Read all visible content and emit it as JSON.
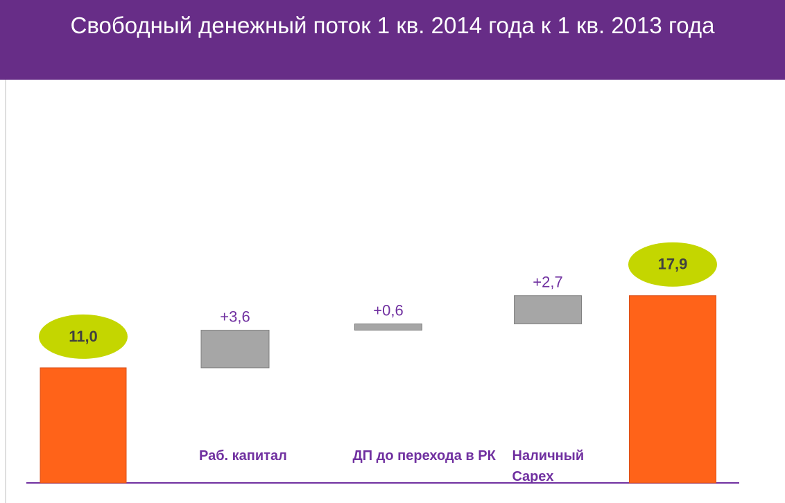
{
  "chart_data": {
    "type": "waterfall",
    "title": "Свободный денежный поток  1 кв. 2014 года к 1 кв. 2013 года",
    "categories": [
      null,
      "Раб. капитал",
      "ДП до перехода в РК",
      "Наличный Capex",
      null
    ],
    "values": [
      11.0,
      3.6,
      0.6,
      2.7,
      17.9
    ],
    "value_labels": [
      "11,0",
      "+3,6",
      "+0,6",
      "+2,7",
      "17,9"
    ],
    "bar_colors": [
      "#ff6319",
      "#a6a6a6",
      "#a6a6a6",
      "#a6a6a6",
      "#ff6319"
    ],
    "label_bubble_color": "#c4d600"
  }
}
